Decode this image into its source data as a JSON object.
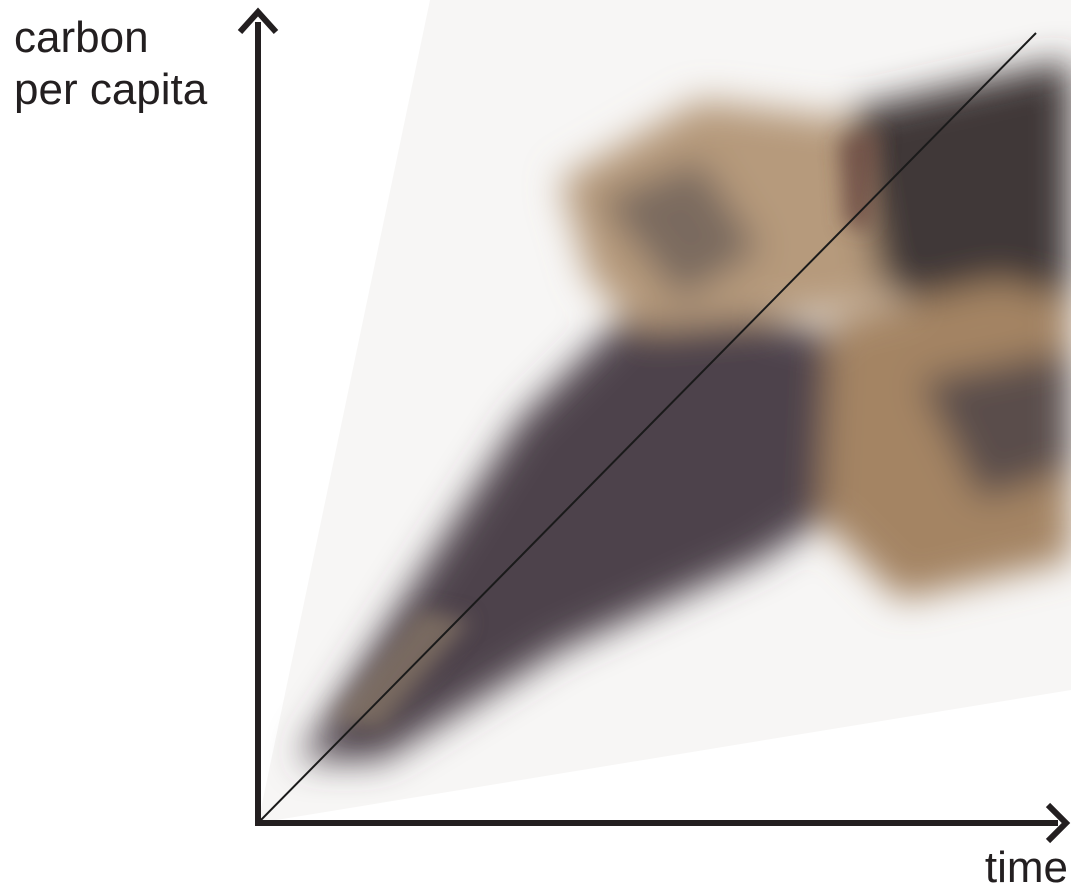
{
  "y_axis": {
    "label_lines": [
      "carbon",
      "per capita"
    ]
  },
  "x_axis": {
    "label": "time"
  }
}
